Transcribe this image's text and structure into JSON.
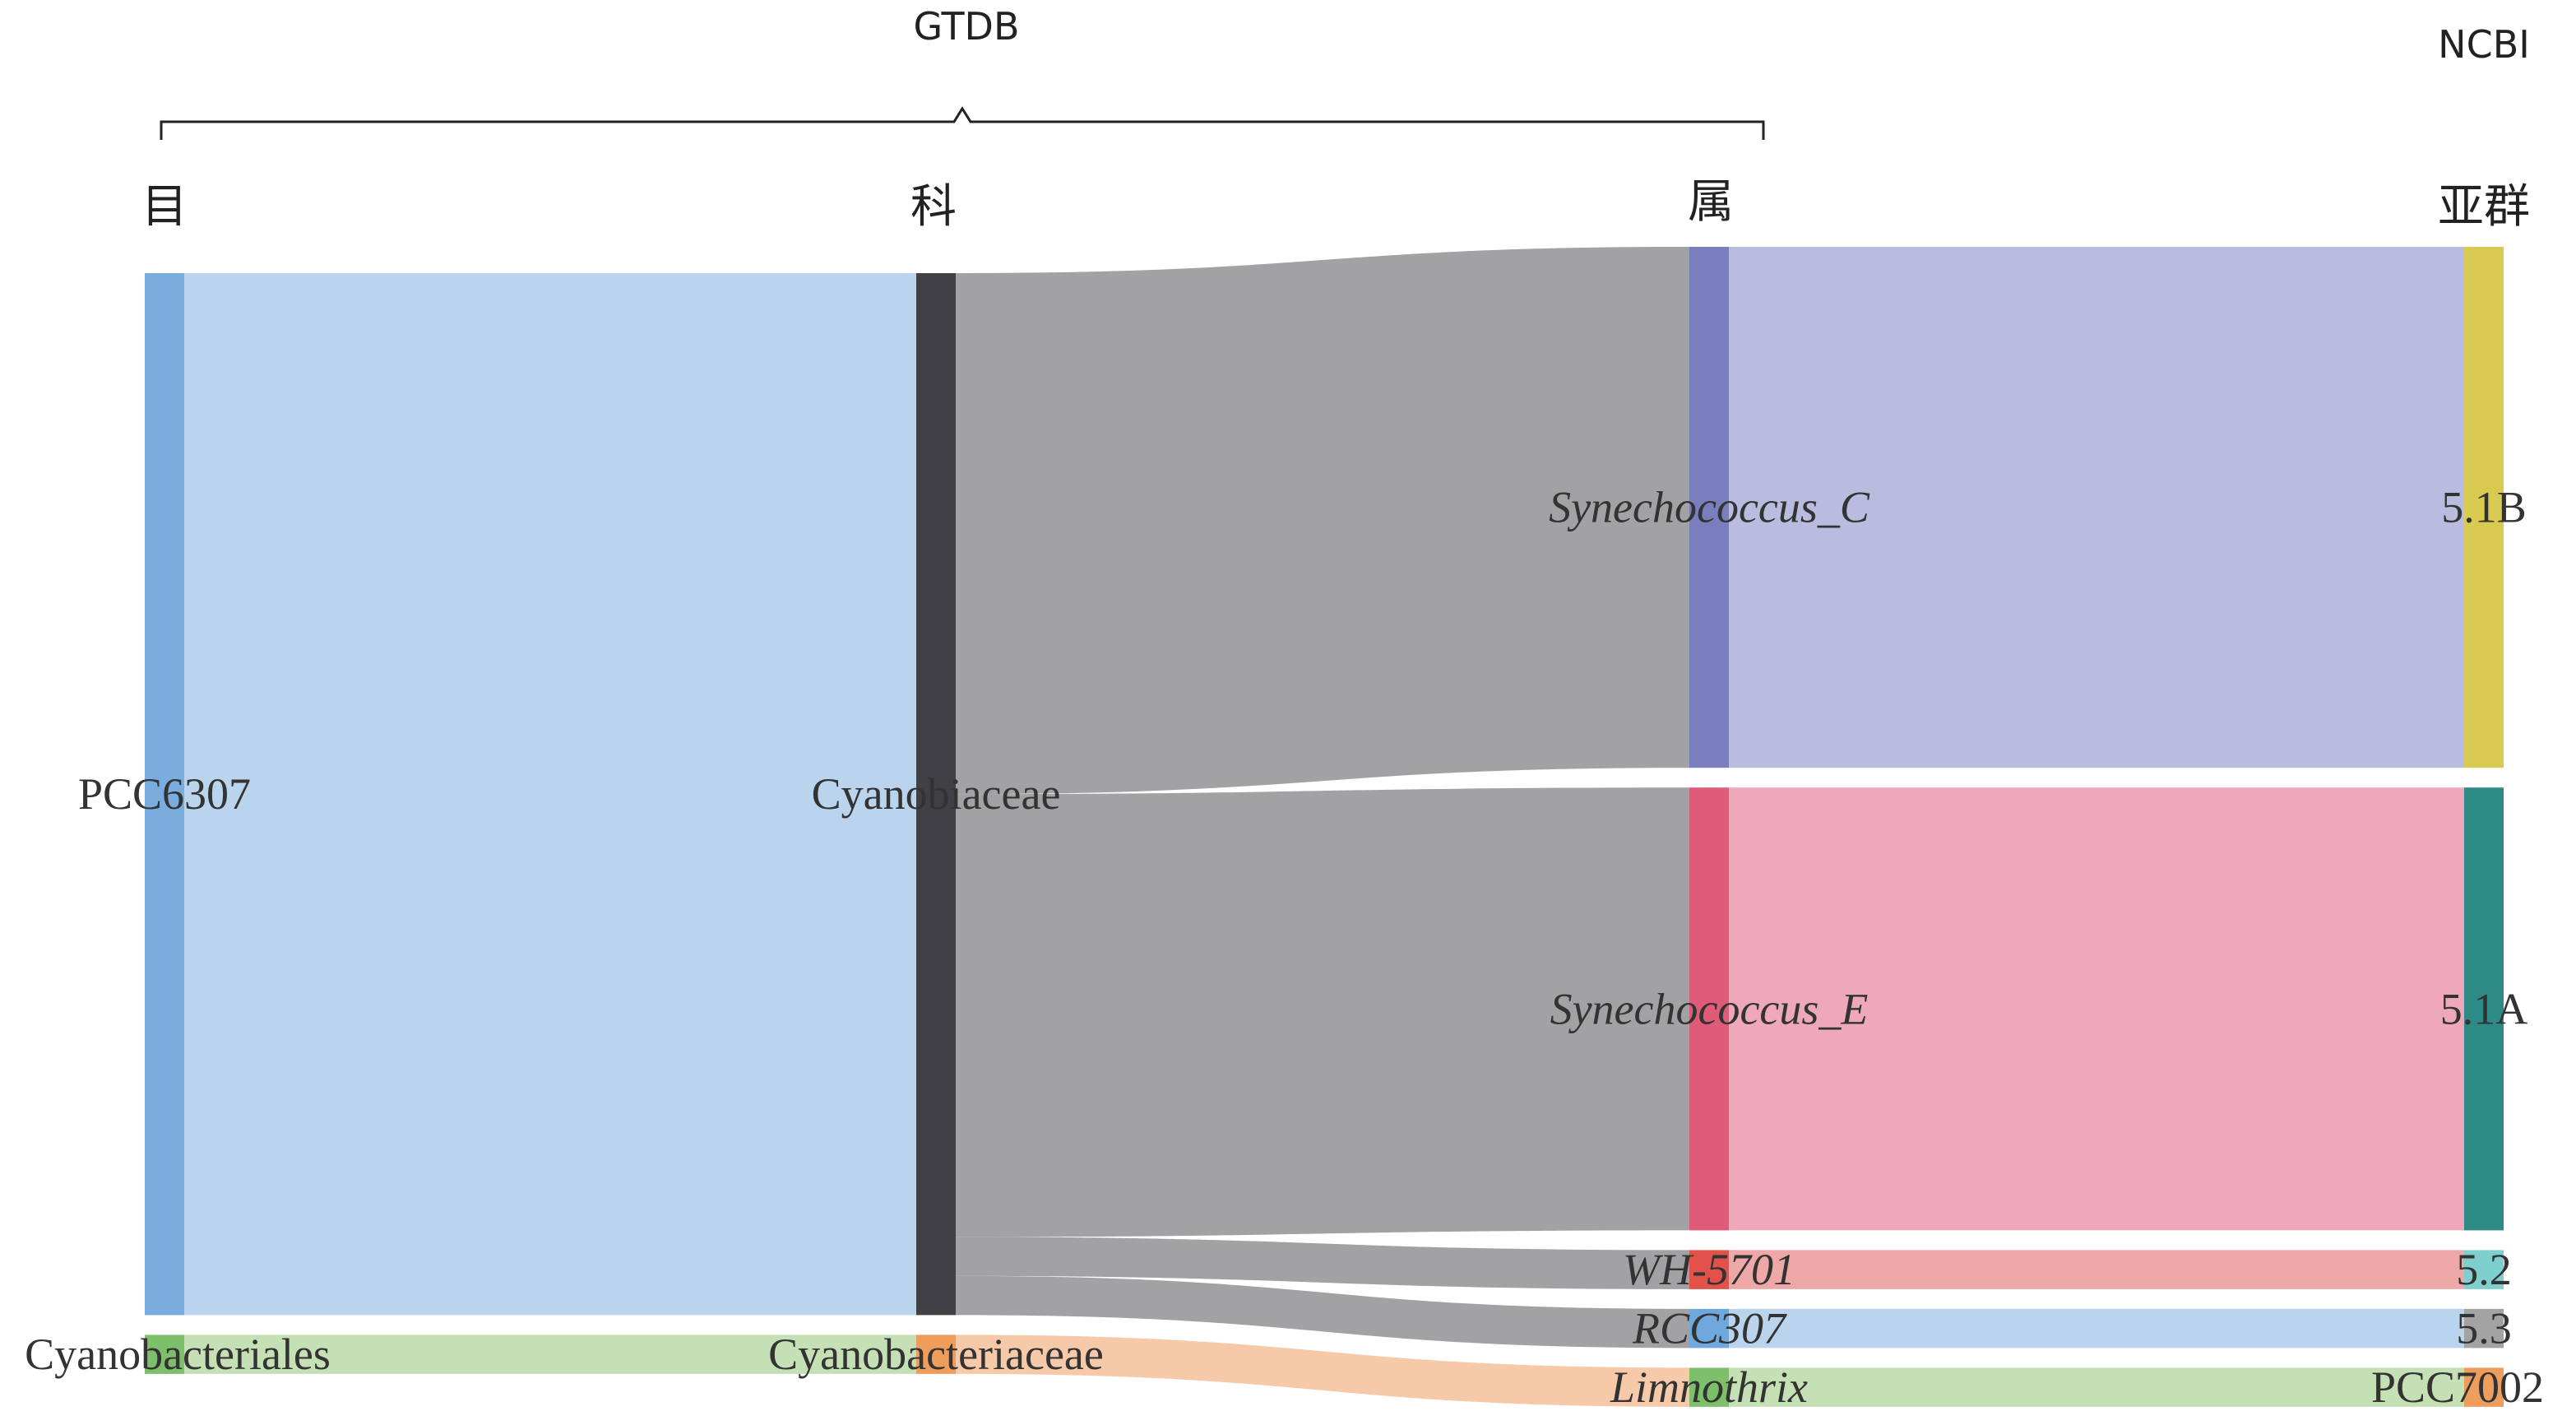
{
  "headers": {
    "group_left": "GTDB",
    "group_right": "NCBI",
    "level_order": "目",
    "level_family": "科",
    "level_genus": "属",
    "level_subgroup": "亚群"
  },
  "chart_data": {
    "type": "sankey",
    "columns": [
      "目",
      "科",
      "属",
      "亚群"
    ],
    "nodes": [
      {
        "name": "PCC6307",
        "column": 0,
        "value": 80,
        "color": "#7aaddd"
      },
      {
        "name": "Cyanobacteriales",
        "column": 0,
        "value": 3,
        "color": "#7dbf6a"
      },
      {
        "name": "Cyanobiaceae",
        "column": 1,
        "value": 80,
        "color": "#404045"
      },
      {
        "name": "Cyanobacteriaceae",
        "column": 1,
        "value": 3,
        "color": "#ee9d5c"
      },
      {
        "name": "Synechococcus_C",
        "column": 2,
        "value": 40,
        "color": "#7a7ebd",
        "italic": true
      },
      {
        "name": "Synechococcus_E",
        "column": 2,
        "value": 34,
        "color": "#e05a7a",
        "italic": true
      },
      {
        "name": "WH-5701",
        "column": 2,
        "value": 3,
        "color": "#e2524a",
        "italic": true
      },
      {
        "name": "RCC307",
        "column": 2,
        "value": 3,
        "color": "#6fa8dc",
        "italic": true
      },
      {
        "name": "Limnothrix",
        "column": 2,
        "value": 3,
        "color": "#7dbf6a",
        "italic": true
      },
      {
        "name": "5.1B",
        "column": 3,
        "value": 40,
        "color": "#d9cb52"
      },
      {
        "name": "5.1A",
        "column": 3,
        "value": 34,
        "color": "#2e8a86"
      },
      {
        "name": "5.2",
        "column": 3,
        "value": 3,
        "color": "#7fcfcf"
      },
      {
        "name": "5.3",
        "column": 3,
        "value": 3,
        "color": "#a3a3a3"
      },
      {
        "name": "PCC7002",
        "column": 3,
        "value": 3,
        "color": "#ee9d5c"
      }
    ],
    "links": [
      {
        "source": "PCC6307",
        "target": "Cyanobiaceae",
        "value": 80,
        "color": "#bad4ed"
      },
      {
        "source": "Cyanobacteriales",
        "target": "Cyanobacteriaceae",
        "value": 3,
        "color": "#c5e0b5"
      },
      {
        "source": "Cyanobiaceae",
        "target": "Synechococcus_C",
        "value": 40,
        "color": "#a2a2a4"
      },
      {
        "source": "Cyanobiaceae",
        "target": "Synechococcus_E",
        "value": 34,
        "color": "#a2a2a4"
      },
      {
        "source": "Cyanobiaceae",
        "target": "WH-5701",
        "value": 3,
        "color": "#a2a2a4"
      },
      {
        "source": "Cyanobiaceae",
        "target": "RCC307",
        "value": 3,
        "color": "#a2a2a4"
      },
      {
        "source": "Cyanobacteriaceae",
        "target": "Limnothrix",
        "value": 3,
        "color": "#f6c9a8"
      },
      {
        "source": "Synechococcus_C",
        "target": "5.1B",
        "value": 40,
        "color": "#b9bcde"
      },
      {
        "source": "Synechococcus_E",
        "target": "5.1A",
        "value": 34,
        "color": "#efa8ba"
      },
      {
        "source": "WH-5701",
        "target": "5.2",
        "value": 3,
        "color": "#eea8a8"
      },
      {
        "source": "RCC307",
        "target": "5.3",
        "value": 3,
        "color": "#bad4ed"
      },
      {
        "source": "Limnothrix",
        "target": "PCC7002",
        "value": 3,
        "color": "#c5e0b5"
      }
    ]
  }
}
